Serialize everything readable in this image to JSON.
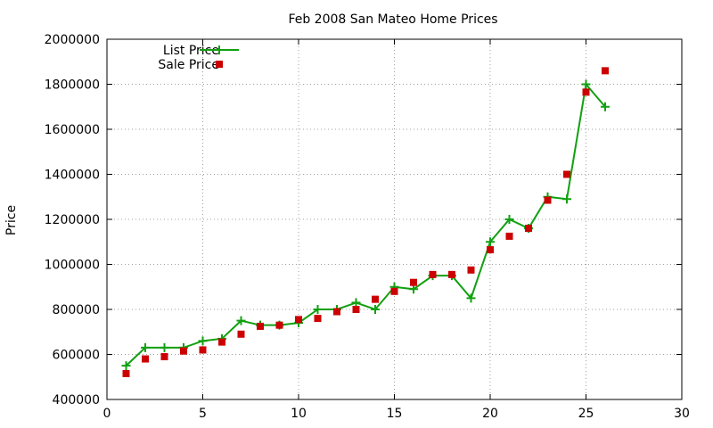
{
  "chart_data": {
    "type": "line",
    "title": "Feb 2008 San Mateo Home Prices",
    "xlabel": "",
    "ylabel": "Price",
    "xlim": [
      0,
      30
    ],
    "ylim": [
      400000,
      2000000
    ],
    "x_ticks": [
      0,
      5,
      10,
      15,
      20,
      25,
      30
    ],
    "y_ticks": [
      400000,
      600000,
      800000,
      1000000,
      1200000,
      1400000,
      1600000,
      1800000,
      2000000
    ],
    "grid": true,
    "legend": "top-left",
    "series": [
      {
        "name": "List Price",
        "style": "line-points",
        "marker": "plus",
        "color": "#11a011",
        "x": [
          1,
          2,
          3,
          4,
          5,
          6,
          7,
          8,
          9,
          10,
          11,
          12,
          13,
          14,
          15,
          16,
          17,
          18,
          19,
          20,
          21,
          22,
          23,
          24,
          25,
          26
        ],
        "y": [
          550000,
          630000,
          630000,
          630000,
          660000,
          670000,
          750000,
          730000,
          730000,
          740000,
          800000,
          800000,
          830000,
          800000,
          900000,
          890000,
          950000,
          950000,
          850000,
          1100000,
          1200000,
          1160000,
          1300000,
          1290000,
          1800000,
          1700000
        ]
      },
      {
        "name": "Sale Price",
        "style": "points",
        "marker": "square",
        "color": "#cc0000",
        "x": [
          1,
          2,
          3,
          4,
          5,
          6,
          7,
          8,
          9,
          10,
          11,
          12,
          13,
          14,
          15,
          16,
          17,
          18,
          19,
          20,
          21,
          22,
          23,
          24,
          25,
          26
        ],
        "y": [
          515000,
          580000,
          590000,
          615000,
          620000,
          655000,
          690000,
          725000,
          730000,
          755000,
          760000,
          790000,
          800000,
          845000,
          880000,
          920000,
          955000,
          955000,
          975000,
          1065000,
          1125000,
          1160000,
          1285000,
          1400000,
          1765000,
          1860000
        ]
      }
    ]
  }
}
